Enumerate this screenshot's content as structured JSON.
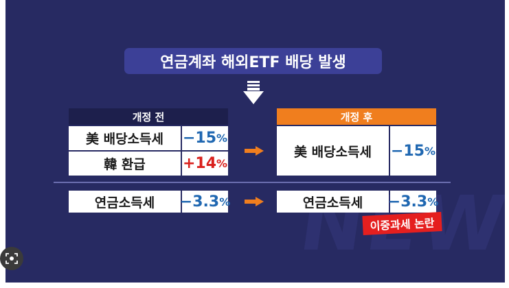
{
  "title": "연금계좌 해외ETF 배당 발생",
  "watermark": "NEWS",
  "before": {
    "header": "개정 전",
    "row1": {
      "label": "美 배당소득세",
      "value": "−15",
      "unit": "%"
    },
    "row2": {
      "label": "韓 환급",
      "value": "+14",
      "unit": "%"
    }
  },
  "after": {
    "header": "개정 후",
    "row1": {
      "label": "美 배당소득세",
      "value": "−15",
      "unit": "%"
    }
  },
  "pension_tax": {
    "before": {
      "label": "연금소득세",
      "value": "−3.3",
      "unit": "%"
    },
    "after": {
      "label": "연금소득세",
      "value": "−3.3",
      "unit": "%"
    }
  },
  "badge": "이중과세 논란",
  "colors": {
    "background": "#272a62",
    "orange": "#f07e1e",
    "blue": "#1f67b1",
    "red": "#d9201c",
    "pill": "#3c4097"
  },
  "icons": [
    "down-arrow-icon",
    "right-arrow-icon",
    "lens-icon"
  ]
}
